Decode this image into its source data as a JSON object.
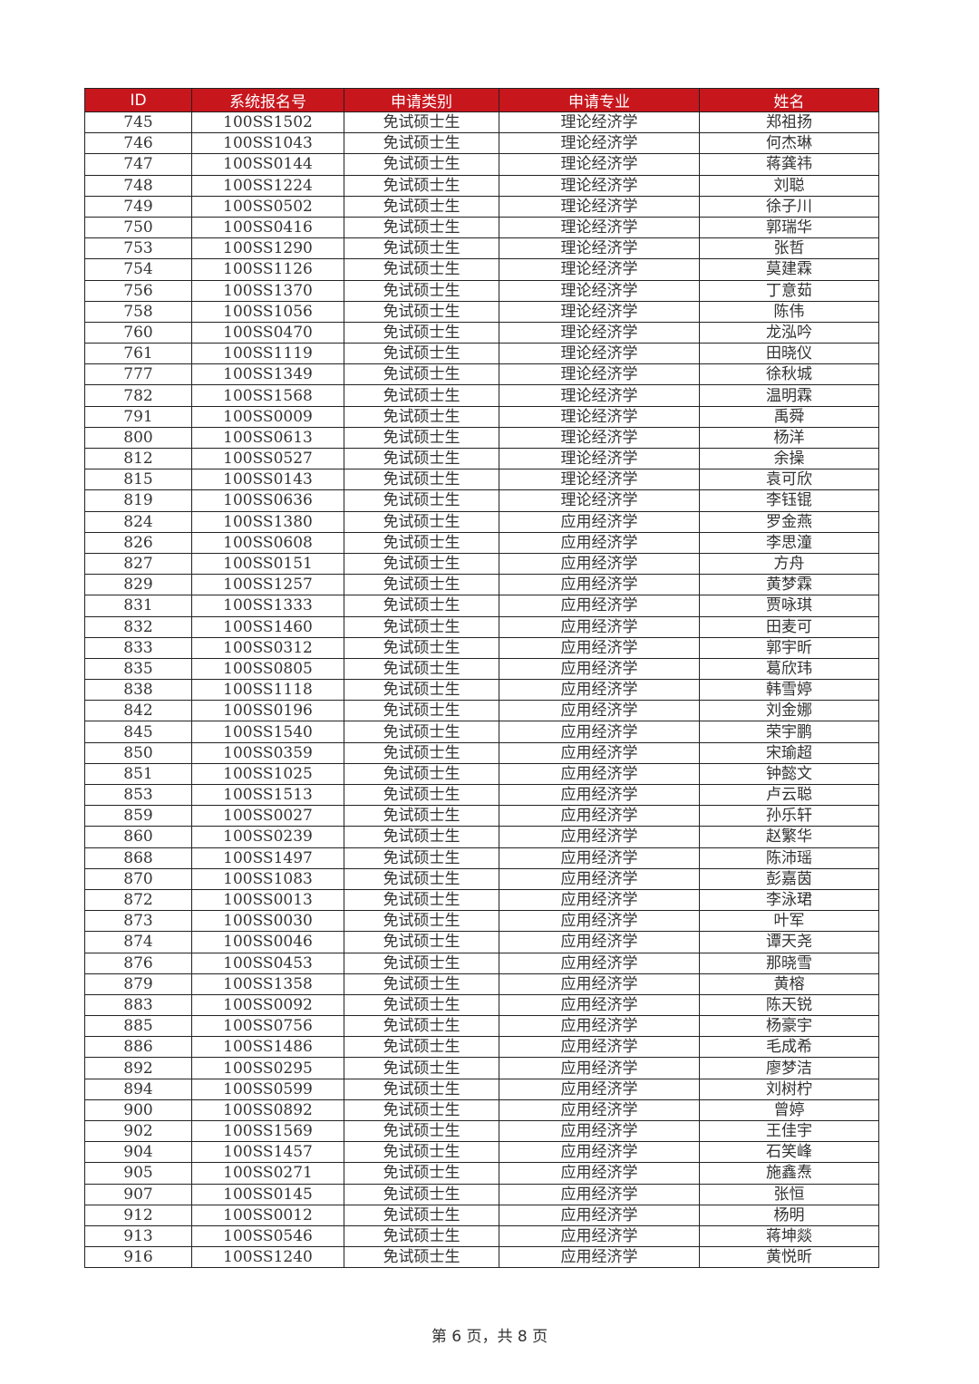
{
  "header": [
    "ID",
    "系统报名号",
    "申请类别",
    "申请专业",
    "姓名"
  ],
  "rows": [
    [
      "745",
      "100SS1502",
      "免试硕士生",
      "理论经济学",
      "郑祖扬"
    ],
    [
      "746",
      "100SS1043",
      "免试硕士生",
      "理论经济学",
      "何杰琳"
    ],
    [
      "747",
      "100SS0144",
      "免试硕士生",
      "理论经济学",
      "蒋龚祎"
    ],
    [
      "748",
      "100SS1224",
      "免试硕士生",
      "理论经济学",
      "刘聪"
    ],
    [
      "749",
      "100SS0502",
      "免试硕士生",
      "理论经济学",
      "徐子川"
    ],
    [
      "750",
      "100SS0416",
      "免试硕士生",
      "理论经济学",
      "郭瑞华"
    ],
    [
      "753",
      "100SS1290",
      "免试硕士生",
      "理论经济学",
      "张哲"
    ],
    [
      "754",
      "100SS1126",
      "免试硕士生",
      "理论经济学",
      "莫建霖"
    ],
    [
      "756",
      "100SS1370",
      "免试硕士生",
      "理论经济学",
      "丁意茹"
    ],
    [
      "758",
      "100SS1056",
      "免试硕士生",
      "理论经济学",
      "陈伟"
    ],
    [
      "760",
      "100SS0470",
      "免试硕士生",
      "理论经济学",
      "龙泓吟"
    ],
    [
      "761",
      "100SS1119",
      "免试硕士生",
      "理论经济学",
      "田晓仪"
    ],
    [
      "777",
      "100SS1349",
      "免试硕士生",
      "理论经济学",
      "徐秋城"
    ],
    [
      "782",
      "100SS1568",
      "免试硕士生",
      "理论经济学",
      "温明霖"
    ],
    [
      "791",
      "100SS0009",
      "免试硕士生",
      "理论经济学",
      "禹舜"
    ],
    [
      "800",
      "100SS0613",
      "免试硕士生",
      "理论经济学",
      "杨洋"
    ],
    [
      "812",
      "100SS0527",
      "免试硕士生",
      "理论经济学",
      "余操"
    ],
    [
      "815",
      "100SS0143",
      "免试硕士生",
      "理论经济学",
      "袁可欣"
    ],
    [
      "819",
      "100SS0636",
      "免试硕士生",
      "理论经济学",
      "李钰锟"
    ],
    [
      "824",
      "100SS1380",
      "免试硕士生",
      "应用经济学",
      "罗金燕"
    ],
    [
      "826",
      "100SS0608",
      "免试硕士生",
      "应用经济学",
      "李思潼"
    ],
    [
      "827",
      "100SS0151",
      "免试硕士生",
      "应用经济学",
      "方舟"
    ],
    [
      "829",
      "100SS1257",
      "免试硕士生",
      "应用经济学",
      "黄梦霖"
    ],
    [
      "831",
      "100SS1333",
      "免试硕士生",
      "应用经济学",
      "贾咏琪"
    ],
    [
      "832",
      "100SS1460",
      "免试硕士生",
      "应用经济学",
      "田麦可"
    ],
    [
      "833",
      "100SS0312",
      "免试硕士生",
      "应用经济学",
      "郭宇昕"
    ],
    [
      "835",
      "100SS0805",
      "免试硕士生",
      "应用经济学",
      "葛欣玮"
    ],
    [
      "838",
      "100SS1118",
      "免试硕士生",
      "应用经济学",
      "韩雪婷"
    ],
    [
      "842",
      "100SS0196",
      "免试硕士生",
      "应用经济学",
      "刘金娜"
    ],
    [
      "845",
      "100SS1540",
      "免试硕士生",
      "应用经济学",
      "荣宇鹏"
    ],
    [
      "850",
      "100SS0359",
      "免试硕士生",
      "应用经济学",
      "宋瑜超"
    ],
    [
      "851",
      "100SS1025",
      "免试硕士生",
      "应用经济学",
      "钟懿文"
    ],
    [
      "853",
      "100SS1513",
      "免试硕士生",
      "应用经济学",
      "卢云聪"
    ],
    [
      "859",
      "100SS0027",
      "免试硕士生",
      "应用经济学",
      "孙乐轩"
    ],
    [
      "860",
      "100SS0239",
      "免试硕士生",
      "应用经济学",
      "赵繁华"
    ],
    [
      "868",
      "100SS1497",
      "免试硕士生",
      "应用经济学",
      "陈沛瑶"
    ],
    [
      "870",
      "100SS1083",
      "免试硕士生",
      "应用经济学",
      "彭嘉茵"
    ],
    [
      "872",
      "100SS0013",
      "免试硕士生",
      "应用经济学",
      "李泳珺"
    ],
    [
      "873",
      "100SS0030",
      "免试硕士生",
      "应用经济学",
      "叶军"
    ],
    [
      "874",
      "100SS0046",
      "免试硕士生",
      "应用经济学",
      "谭天尧"
    ],
    [
      "876",
      "100SS0453",
      "免试硕士生",
      "应用经济学",
      "那晓雪"
    ],
    [
      "879",
      "100SS1358",
      "免试硕士生",
      "应用经济学",
      "黄榕"
    ],
    [
      "883",
      "100SS0092",
      "免试硕士生",
      "应用经济学",
      "陈天锐"
    ],
    [
      "885",
      "100SS0756",
      "免试硕士生",
      "应用经济学",
      "杨豪宇"
    ],
    [
      "886",
      "100SS1486",
      "免试硕士生",
      "应用经济学",
      "毛成希"
    ],
    [
      "892",
      "100SS0295",
      "免试硕士生",
      "应用经济学",
      "廖梦洁"
    ],
    [
      "894",
      "100SS0599",
      "免试硕士生",
      "应用经济学",
      "刘树柠"
    ],
    [
      "900",
      "100SS0892",
      "免试硕士生",
      "应用经济学",
      "曾婷"
    ],
    [
      "902",
      "100SS1569",
      "免试硕士生",
      "应用经济学",
      "王佳宇"
    ],
    [
      "904",
      "100SS1457",
      "免试硕士生",
      "应用经济学",
      "石笑峰"
    ],
    [
      "905",
      "100SS0271",
      "免试硕士生",
      "应用经济学",
      "施鑫焘"
    ],
    [
      "907",
      "100SS0145",
      "免试硕士生",
      "应用经济学",
      "张恒"
    ],
    [
      "912",
      "100SS0012",
      "免试硕士生",
      "应用经济学",
      "杨明"
    ],
    [
      "913",
      "100SS0546",
      "免试硕士生",
      "应用经济学",
      "蒋坤燚"
    ],
    [
      "916",
      "100SS1240",
      "免试硕士生",
      "应用经济学",
      "黄悦昕"
    ]
  ],
  "footer": "第 6 页，共 8 页",
  "colors": {
    "header_bg": "#c8161d",
    "header_text": "#ffffff",
    "border": "#222222"
  }
}
